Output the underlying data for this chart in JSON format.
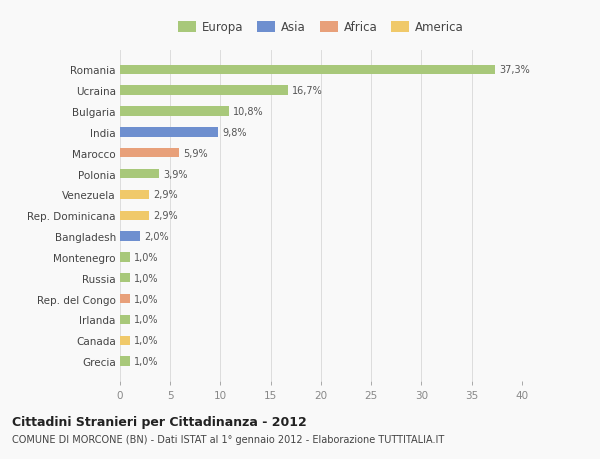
{
  "categories": [
    "Grecia",
    "Canada",
    "Irlanda",
    "Rep. del Congo",
    "Russia",
    "Montenegro",
    "Bangladesh",
    "Rep. Dominicana",
    "Venezuela",
    "Polonia",
    "Marocco",
    "India",
    "Bulgaria",
    "Ucraina",
    "Romania"
  ],
  "values": [
    1.0,
    1.0,
    1.0,
    1.0,
    1.0,
    1.0,
    2.0,
    2.9,
    2.9,
    3.9,
    5.9,
    9.8,
    10.8,
    16.7,
    37.3
  ],
  "labels": [
    "1,0%",
    "1,0%",
    "1,0%",
    "1,0%",
    "1,0%",
    "1,0%",
    "2,0%",
    "2,9%",
    "2,9%",
    "3,9%",
    "5,9%",
    "9,8%",
    "10,8%",
    "16,7%",
    "37,3%"
  ],
  "colors": [
    "#a8c87a",
    "#f0c96a",
    "#a8c87a",
    "#e8a07a",
    "#a8c87a",
    "#a8c87a",
    "#6e8fcf",
    "#f0c96a",
    "#f0c96a",
    "#a8c87a",
    "#e8a07a",
    "#6e8fcf",
    "#a8c87a",
    "#a8c87a",
    "#a8c87a"
  ],
  "legend": [
    {
      "label": "Europa",
      "color": "#a8c87a"
    },
    {
      "label": "Asia",
      "color": "#6e8fcf"
    },
    {
      "label": "Africa",
      "color": "#e8a07a"
    },
    {
      "label": "America",
      "color": "#f0c96a"
    }
  ],
  "xlim": [
    0,
    40
  ],
  "xticks": [
    0,
    5,
    10,
    15,
    20,
    25,
    30,
    35,
    40
  ],
  "title": "Cittadini Stranieri per Cittadinanza - 2012",
  "subtitle": "COMUNE DI MORCONE (BN) - Dati ISTAT al 1° gennaio 2012 - Elaborazione TUTTITALIA.IT",
  "background_color": "#f9f9f9",
  "grid_color": "#dddddd",
  "bar_height": 0.45
}
